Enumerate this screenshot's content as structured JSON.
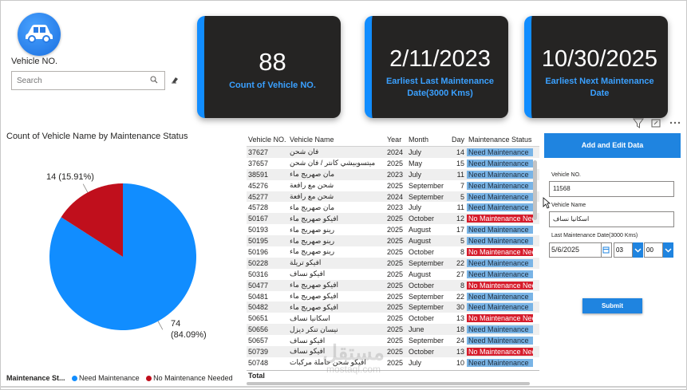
{
  "slicer": {
    "title": "Vehicle NO.",
    "search_placeholder": "Search"
  },
  "cards": [
    {
      "value": "88",
      "label": "Count of Vehicle NO."
    },
    {
      "value": "2/11/2023",
      "label": "Earliest Last Maintenance Date(3000 Kms)"
    },
    {
      "value": "10/30/2025",
      "label": "Earliest Next Maintenance Date"
    }
  ],
  "chart_data": {
    "type": "pie",
    "title": "Count of Vehicle Name by Maintenance Status",
    "legend_title": "Maintenance St...",
    "slices": [
      {
        "name": "Need Maintenance",
        "value": 74,
        "percent": 84.09,
        "color": "#118dff",
        "label_count": "74",
        "label_pct": "(84.09%)"
      },
      {
        "name": "No Maintenance Needed",
        "value": 14,
        "percent": 15.91,
        "color": "#c00f1c",
        "label": "14 (15.91%)"
      }
    ]
  },
  "table": {
    "headers": [
      "Vehicle NO.",
      "Vehicle Name",
      "Year",
      "Month",
      "Day",
      "Maintenance Status"
    ],
    "rows": [
      [
        "37627",
        "فان شحن",
        "2024",
        "July",
        "14",
        "Need Maintenance"
      ],
      [
        "37657",
        "ميتسوبيشي كانتر / فان شحن",
        "2025",
        "May",
        "15",
        "Need Maintenance"
      ],
      [
        "38591",
        "مان صهريج ماء",
        "2023",
        "July",
        "11",
        "Need Maintenance"
      ],
      [
        "45276",
        "شحن مع رافعة",
        "2025",
        "September",
        "7",
        "Need Maintenance"
      ],
      [
        "45277",
        "شحن مع رافعة",
        "2024",
        "September",
        "5",
        "Need Maintenance"
      ],
      [
        "45728",
        "مان صهريج ماء",
        "2023",
        "July",
        "11",
        "Need Maintenance"
      ],
      [
        "50167",
        "افيكو صهريج ماء",
        "2025",
        "October",
        "12",
        "No Maintenance Needed"
      ],
      [
        "50193",
        "رينو صهريج ماء",
        "2025",
        "August",
        "17",
        "Need Maintenance"
      ],
      [
        "50195",
        "رينو صهريج ماء",
        "2025",
        "August",
        "5",
        "Need Maintenance"
      ],
      [
        "50196",
        "رينو صهريج ماء",
        "2025",
        "October",
        "8",
        "No Maintenance Needed"
      ],
      [
        "50228",
        "افيكو تريلة",
        "2025",
        "September",
        "22",
        "Need Maintenance"
      ],
      [
        "50316",
        "افيكو نساف",
        "2025",
        "August",
        "27",
        "Need Maintenance"
      ],
      [
        "50477",
        "افيكو صهريج ماء",
        "2025",
        "October",
        "8",
        "No Maintenance Needed"
      ],
      [
        "50481",
        "افيكو صهريج ماء",
        "2025",
        "September",
        "22",
        "Need Maintenance"
      ],
      [
        "50482",
        "افيكو صهريج ماء",
        "2025",
        "September",
        "30",
        "Need Maintenance"
      ],
      [
        "50651",
        "اسكانيا نساف",
        "2025",
        "October",
        "13",
        "No Maintenance Needed"
      ],
      [
        "50656",
        "نيسان تنكر ديزل",
        "2025",
        "June",
        "18",
        "Need Maintenance"
      ],
      [
        "50657",
        "افيكو نساف",
        "2025",
        "September",
        "24",
        "Need Maintenance"
      ],
      [
        "50739",
        "افيكو نساف",
        "2025",
        "October",
        "13",
        "No Maintenance Needed"
      ],
      [
        "50748",
        "افيكو شحن حاملة مركبات",
        "2025",
        "July",
        "10",
        "Need Maintenance"
      ]
    ],
    "total_label": "Total"
  },
  "form": {
    "header": "Add and Edit Data",
    "vehicle_no_label": "Vehicle NO.",
    "vehicle_no_value": "11568",
    "vehicle_name_label": "Vehicle Name",
    "vehicle_name_value": "اسكانيا نساف",
    "date_label": "Last Maintenance Date(3000 Kms)",
    "date_value": "5/6/2025",
    "hour_value": "03",
    "minute_value": "00",
    "submit_label": "Submit"
  },
  "watermark": {
    "line1": "مستقل",
    "line2": "mostaql.com"
  },
  "colors": {
    "accent": "#118dff",
    "card_bg": "#252423",
    "no_maintenance": "#d61c2b",
    "need_maintenance": "#79b4e6"
  }
}
